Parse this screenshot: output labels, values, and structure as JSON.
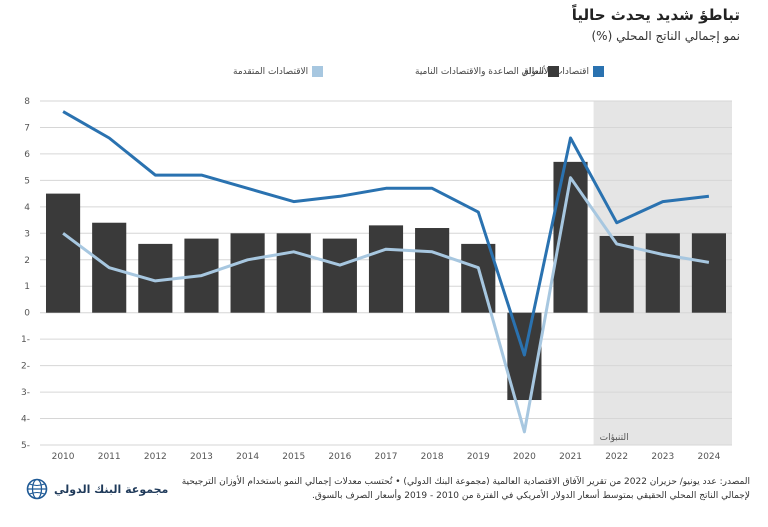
{
  "title": "تباطؤ شديد يحدث حالياً",
  "subtitle": "نمو إجمالي الناتج المحلي (%)",
  "colors": {
    "world": "#3a3a3a",
    "emerging": "#2a72b0",
    "advanced": "#a7c7e0",
    "forecast_bg": "#e5e5e5",
    "grid": "#d6d6d6"
  },
  "forecast_label": "التنبؤات",
  "source": {
    "line1": "المصدر: عدد يونيو/ حزيران 2022 من تقرير الآفاق الاقتصادية العالمية (مجموعة البنك الدولي) • تُحتسب معدلات إجمالي النمو باستخدام الأوزان الترجيحية",
    "line2": "لإجمالي الناتج المحلي الحقيقي بمتوسط أسعار الدولار الأمريكي في الفترة من 2010 - 2019 وأسعار الصرف بالسوق."
  },
  "logo": {
    "text": "مجموعة البنك الدولي",
    "icon": "globe-icon"
  },
  "chart_data": {
    "type": "bar",
    "title": "تباطؤ شديد يحدث حالياً",
    "subtitle": "نمو إجمالي الناتج المحلي (%)",
    "categories": [
      "2010",
      "2011",
      "2012",
      "2013",
      "2014",
      "2015",
      "2016",
      "2017",
      "2018",
      "2019",
      "2020",
      "2021",
      "2022",
      "2023",
      "2024"
    ],
    "y_ticks": [
      "8",
      "7",
      "6",
      "5",
      "4",
      "3",
      "2",
      "1",
      "0",
      "1-",
      "2-",
      "3-",
      "4-",
      "5-"
    ],
    "ylim": [
      -5,
      8
    ],
    "grid": true,
    "legend_position": "top",
    "forecast_from": "2022",
    "series": [
      {
        "name": "العالم",
        "type": "bar",
        "values": [
          4.5,
          3.4,
          2.6,
          2.8,
          3.0,
          3.0,
          2.8,
          3.3,
          3.2,
          2.6,
          -3.3,
          5.7,
          2.9,
          3.0,
          3.0
        ]
      },
      {
        "name": "اقتصادات الأسواق الصاعدة والاقتصادات النامية",
        "type": "line",
        "values": [
          7.6,
          6.6,
          5.2,
          5.2,
          4.7,
          4.2,
          4.4,
          4.7,
          4.7,
          3.8,
          -1.6,
          6.6,
          3.4,
          4.2,
          4.4
        ]
      },
      {
        "name": "الاقتصادات المتقدمة",
        "type": "line",
        "values": [
          3.0,
          1.7,
          1.2,
          1.4,
          2.0,
          2.3,
          1.8,
          2.4,
          2.3,
          1.7,
          -4.5,
          5.1,
          2.6,
          2.2,
          1.9
        ]
      }
    ]
  }
}
